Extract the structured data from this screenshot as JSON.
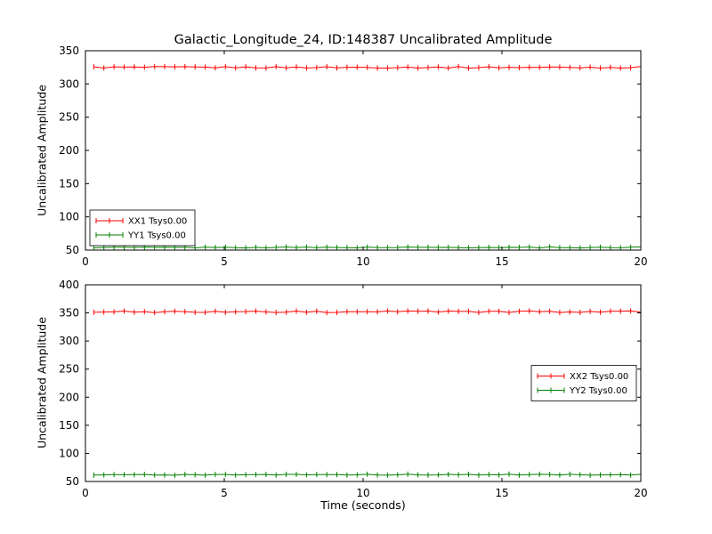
{
  "title": "Galactic_Longitude_24, ID:148387 Uncalibrated Amplitude",
  "xlabel": "Time (seconds)",
  "colors": {
    "xx_series": "#ff0000",
    "yy_series": "#008000",
    "axis": "#000000",
    "background": "#ffffff"
  },
  "chart_data": [
    {
      "type": "line",
      "ylabel": "Uncalibrated Amplitude",
      "xlim": [
        0,
        20
      ],
      "ylim": [
        50,
        350
      ],
      "xticks": [
        0,
        5,
        10,
        15,
        20
      ],
      "yticks": [
        50,
        100,
        150,
        200,
        250,
        300,
        350
      ],
      "grid": false,
      "legend_position": "lower-left",
      "series": [
        {
          "name": "XX1 Tsys0.00",
          "color": "#ff0000",
          "y_mean": 325,
          "y_noise": 1.2,
          "x_start": 0.3,
          "x_end": 20,
          "n_points": 55,
          "style": "errorbar"
        },
        {
          "name": "YY1 Tsys0.00",
          "color": "#008000",
          "y_mean": 54,
          "y_noise": 0.8,
          "x_start": 0.3,
          "x_end": 20,
          "n_points": 55,
          "style": "errorbar"
        }
      ]
    },
    {
      "type": "line",
      "ylabel": "Uncalibrated Amplitude",
      "xlabel": "Time (seconds)",
      "xlim": [
        0,
        20
      ],
      "ylim": [
        50,
        400
      ],
      "xticks": [
        0,
        5,
        10,
        15,
        20
      ],
      "yticks": [
        50,
        100,
        150,
        200,
        250,
        300,
        350,
        400
      ],
      "grid": false,
      "legend_position": "center-right",
      "series": [
        {
          "name": "XX2 Tsys0.00",
          "color": "#ff0000",
          "y_mean": 352,
          "y_noise": 1.5,
          "x_start": 0.3,
          "x_end": 20,
          "n_points": 55,
          "style": "errorbar"
        },
        {
          "name": "YY2 Tsys0.00",
          "color": "#008000",
          "y_mean": 62,
          "y_noise": 1.0,
          "x_start": 0.3,
          "x_end": 20,
          "n_points": 55,
          "style": "errorbar"
        }
      ]
    }
  ]
}
